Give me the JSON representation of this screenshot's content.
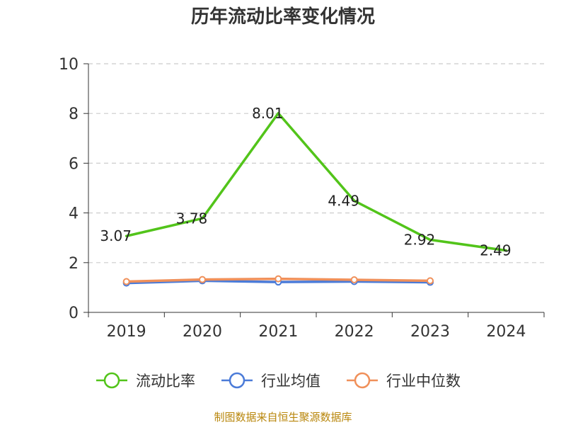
{
  "title": "历年流动比率变化情况",
  "source": "制图数据来自恒生聚源数据库",
  "colors": {
    "current_ratio": "#52c41a",
    "industry_mean": "#4b7bd8",
    "industry_median": "#f0905a",
    "grid": "#cccccc",
    "axis": "#333333",
    "source_text": "#b8860b"
  },
  "chart_data": {
    "type": "line",
    "title": "历年流动比率变化情况",
    "xlabel": "",
    "ylabel": "",
    "categories": [
      "2019",
      "2020",
      "2021",
      "2022",
      "2023",
      "2024"
    ],
    "ylim": [
      0,
      10
    ],
    "yticks": [
      0,
      2,
      4,
      6,
      8,
      10
    ],
    "grid": true,
    "legend_position": "bottom",
    "series": [
      {
        "name": "流动比率",
        "key": "current_ratio",
        "values": [
          3.07,
          3.78,
          8.01,
          4.49,
          2.92,
          2.49
        ],
        "data_labels": [
          "3.07",
          "3.78",
          "8.01",
          "4.49",
          "2.92",
          "2.49"
        ],
        "show_markers": false
      },
      {
        "name": "行业均值",
        "key": "industry_mean",
        "values": [
          1.18,
          1.27,
          1.22,
          1.24,
          1.21,
          null
        ],
        "show_markers": true
      },
      {
        "name": "行业中位数",
        "key": "industry_median",
        "values": [
          1.24,
          1.32,
          1.35,
          1.31,
          1.27,
          null
        ],
        "show_markers": true
      }
    ]
  }
}
